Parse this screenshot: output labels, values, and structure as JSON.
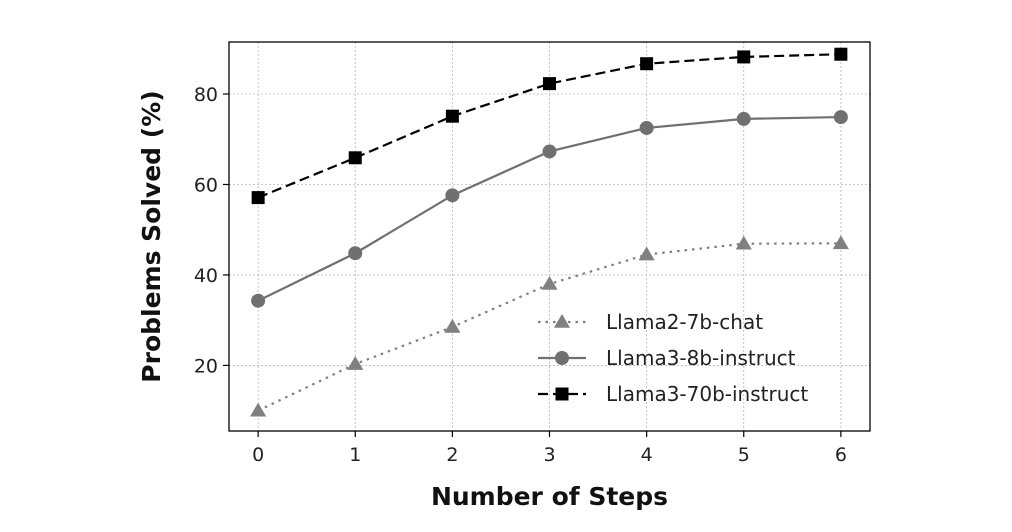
{
  "chart_data": {
    "type": "line",
    "title": "",
    "xlabel": "Number of Steps",
    "ylabel": "Problems Solved (%)",
    "x": [
      0,
      1,
      2,
      3,
      4,
      5,
      6
    ],
    "xlim": [
      -0.3,
      6.3
    ],
    "ylim": [
      5.5,
      91.5
    ],
    "xticks": [
      0,
      1,
      2,
      3,
      4,
      5,
      6
    ],
    "yticks": [
      20,
      40,
      60,
      80
    ],
    "grid": true,
    "legend_position": "lower-right",
    "series": [
      {
        "name": "Llama2-7b-chat",
        "values": [
          10.0,
          20.3,
          28.5,
          38.0,
          44.5,
          46.9,
          47.0
        ],
        "color": "#808080",
        "line_style": "dotted",
        "marker": "triangle"
      },
      {
        "name": "Llama3-8b-instruct",
        "values": [
          34.3,
          44.8,
          57.6,
          67.3,
          72.5,
          74.5,
          74.9
        ],
        "color": "#707070",
        "line_style": "solid",
        "marker": "circle"
      },
      {
        "name": "Llama3-70b-instruct",
        "values": [
          57.1,
          65.9,
          75.1,
          82.3,
          86.7,
          88.2,
          88.8
        ],
        "color": "#000000",
        "line_style": "dashed",
        "marker": "square"
      }
    ]
  }
}
